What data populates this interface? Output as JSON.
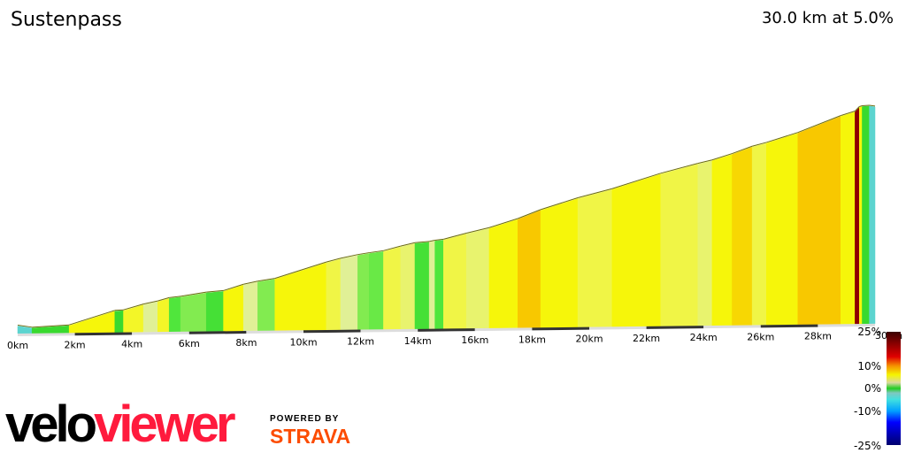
{
  "title": "Sustenpass",
  "summary": "30.0 km at 5.0%",
  "logo": {
    "velo": "velo",
    "viewer": "viewer",
    "powered_by": "POWERED BY",
    "strava": "STRAVA"
  },
  "colors": {
    "strava": "#fc4c02",
    "viewer": "#ff1a3d"
  },
  "chart_data": {
    "type": "area",
    "title": "Sustenpass",
    "xlabel": "",
    "ylabel": "",
    "xlim": [
      0,
      30
    ],
    "x_ticks": [
      "0km",
      "2km",
      "4km",
      "6km",
      "8km",
      "10km",
      "12km",
      "14km",
      "16km",
      "18km",
      "20km",
      "22km",
      "24km",
      "26km",
      "28km",
      "30km"
    ],
    "gradient_legend": {
      "ticks": [
        "25%",
        "10%",
        "0%",
        "-10%",
        "-25%"
      ],
      "range": [
        -25,
        25
      ]
    },
    "segments": [
      {
        "from": 0,
        "to": 0.5,
        "gradient": -3
      },
      {
        "from": 0.5,
        "to": 1.8,
        "gradient": 1
      },
      {
        "from": 1.8,
        "to": 3.4,
        "gradient": 6
      },
      {
        "from": 3.4,
        "to": 3.7,
        "gradient": 1
      },
      {
        "from": 3.7,
        "to": 4.4,
        "gradient": 5.5
      },
      {
        "from": 4.4,
        "to": 4.9,
        "gradient": 4
      },
      {
        "from": 4.9,
        "to": 5.3,
        "gradient": 5.5
      },
      {
        "from": 5.3,
        "to": 5.7,
        "gradient": 2
      },
      {
        "from": 5.7,
        "to": 6.6,
        "gradient": 3
      },
      {
        "from": 6.6,
        "to": 7.2,
        "gradient": 1.5
      },
      {
        "from": 7.2,
        "to": 7.9,
        "gradient": 6
      },
      {
        "from": 7.9,
        "to": 8.4,
        "gradient": 4
      },
      {
        "from": 8.4,
        "to": 9.0,
        "gradient": 3
      },
      {
        "from": 9.0,
        "to": 10.8,
        "gradient": 6
      },
      {
        "from": 10.8,
        "to": 11.3,
        "gradient": 5
      },
      {
        "from": 11.3,
        "to": 11.9,
        "gradient": 4
      },
      {
        "from": 11.9,
        "to": 12.3,
        "gradient": 3
      },
      {
        "from": 12.3,
        "to": 12.8,
        "gradient": 2.5
      },
      {
        "from": 12.8,
        "to": 13.4,
        "gradient": 5
      },
      {
        "from": 13.4,
        "to": 13.9,
        "gradient": 4.5
      },
      {
        "from": 13.9,
        "to": 14.4,
        "gradient": 1.5
      },
      {
        "from": 14.4,
        "to": 14.6,
        "gradient": 4
      },
      {
        "from": 14.6,
        "to": 14.9,
        "gradient": 2
      },
      {
        "from": 14.9,
        "to": 15.7,
        "gradient": 5
      },
      {
        "from": 15.7,
        "to": 16.5,
        "gradient": 4.5
      },
      {
        "from": 16.5,
        "to": 17.5,
        "gradient": 6
      },
      {
        "from": 17.5,
        "to": 18.3,
        "gradient": 7.5
      },
      {
        "from": 18.3,
        "to": 19.6,
        "gradient": 6
      },
      {
        "from": 19.6,
        "to": 20.8,
        "gradient": 5
      },
      {
        "from": 20.8,
        "to": 22.5,
        "gradient": 6
      },
      {
        "from": 22.5,
        "to": 23.8,
        "gradient": 5
      },
      {
        "from": 23.8,
        "to": 24.3,
        "gradient": 4.5
      },
      {
        "from": 24.3,
        "to": 25.0,
        "gradient": 6
      },
      {
        "from": 25.0,
        "to": 25.7,
        "gradient": 7
      },
      {
        "from": 25.7,
        "to": 26.2,
        "gradient": 5
      },
      {
        "from": 26.2,
        "to": 27.3,
        "gradient": 6
      },
      {
        "from": 27.3,
        "to": 28.8,
        "gradient": 7.5
      },
      {
        "from": 28.8,
        "to": 29.3,
        "gradient": 6
      },
      {
        "from": 29.3,
        "to": 29.45,
        "gradient": 20
      },
      {
        "from": 29.45,
        "to": 29.55,
        "gradient": 6
      },
      {
        "from": 29.55,
        "to": 29.8,
        "gradient": 1
      },
      {
        "from": 29.8,
        "to": 30,
        "gradient": -3
      }
    ]
  }
}
